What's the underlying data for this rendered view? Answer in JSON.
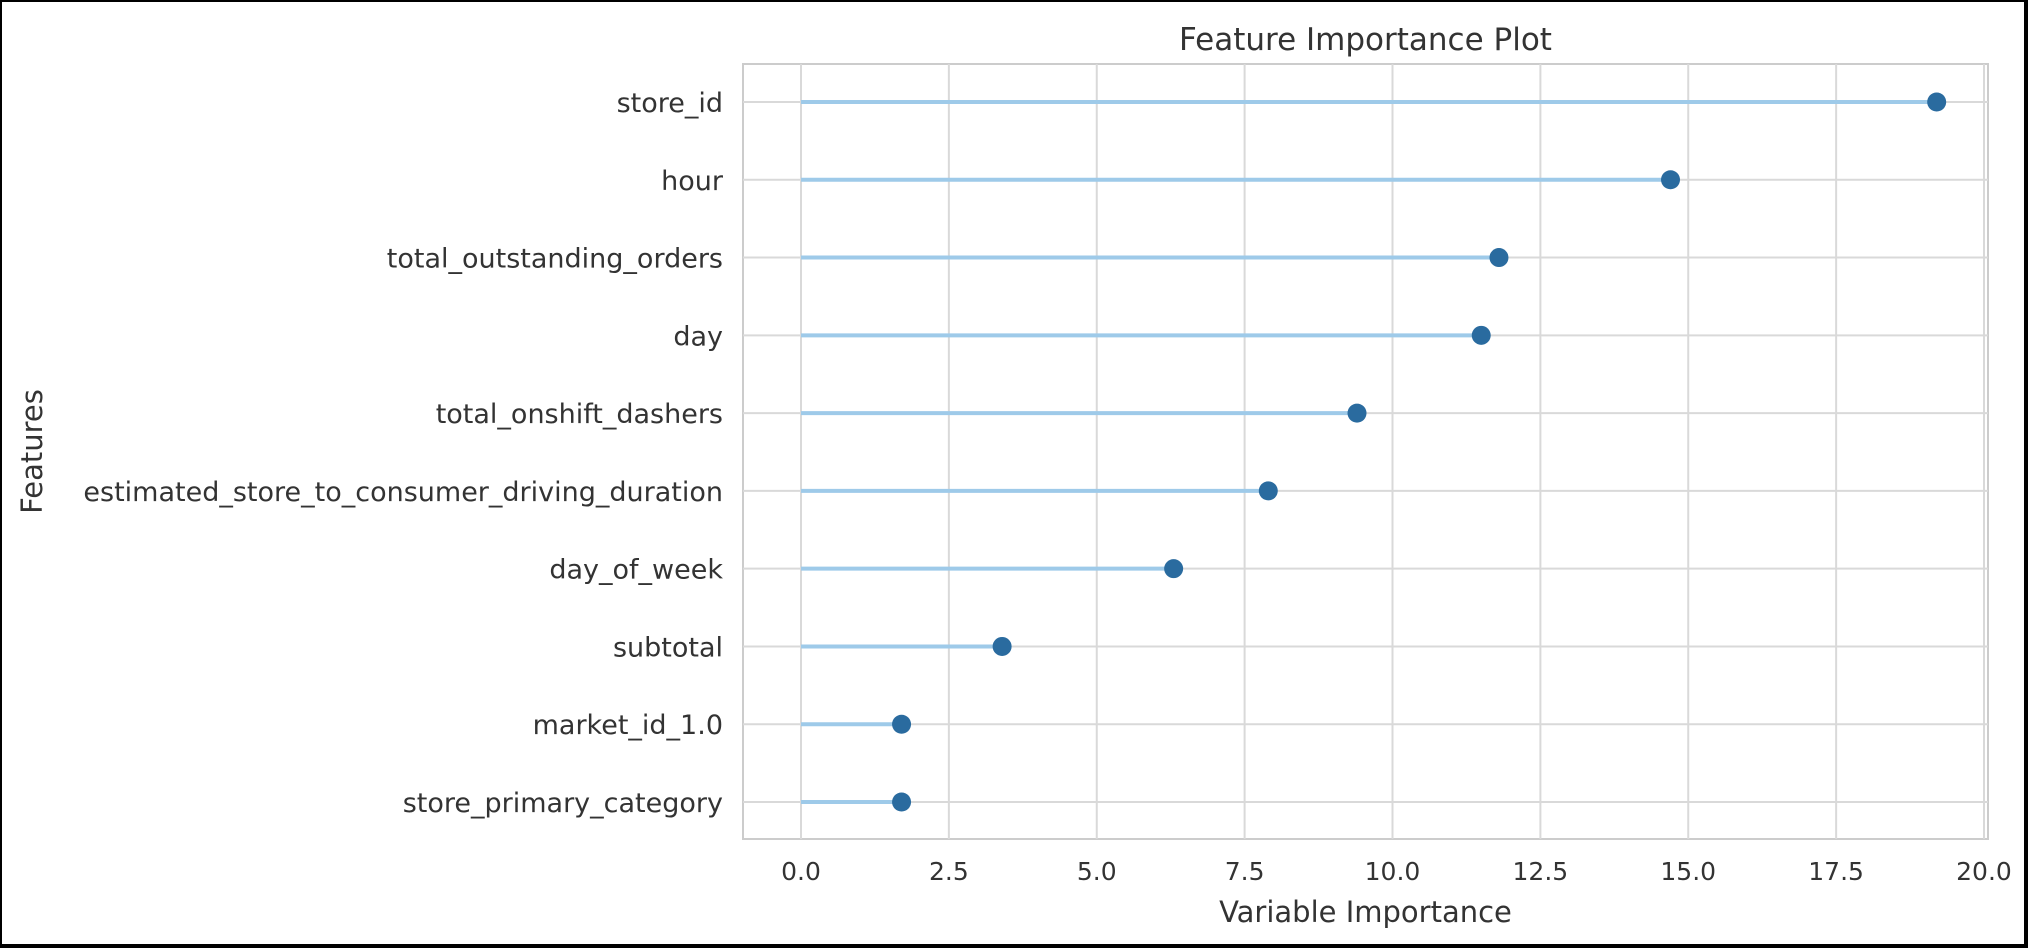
{
  "chart_data": {
    "type": "lollipop",
    "title": "Feature Importance Plot",
    "xlabel": "Variable Importance",
    "ylabel": "Features",
    "xlim": [
      -1.0,
      20.2
    ],
    "xticks": [
      0.0,
      2.5,
      5.0,
      7.5,
      10.0,
      12.5,
      15.0,
      17.5,
      20.0
    ],
    "xtick_labels": [
      "0.0",
      "2.5",
      "5.0",
      "7.5",
      "10.0",
      "12.5",
      "15.0",
      "17.5",
      "20.0"
    ],
    "categories": [
      "store_id",
      "hour",
      "total_outstanding_orders",
      "day",
      "total_onshift_dashers",
      "estimated_store_to_consumer_driving_duration",
      "day_of_week",
      "subtotal",
      "market_id_1.0",
      "store_primary_category"
    ],
    "values": [
      19.2,
      14.7,
      11.8,
      11.5,
      9.4,
      7.9,
      6.3,
      3.4,
      1.7,
      1.7
    ],
    "grid": true,
    "colors": {
      "stem": "#9ecae9",
      "marker": "#2a6b9f",
      "grid": "#d9d9d9",
      "axes_edge": "#cccccc",
      "text": "#333333",
      "background": "#ffffff",
      "border": "#000000"
    }
  }
}
